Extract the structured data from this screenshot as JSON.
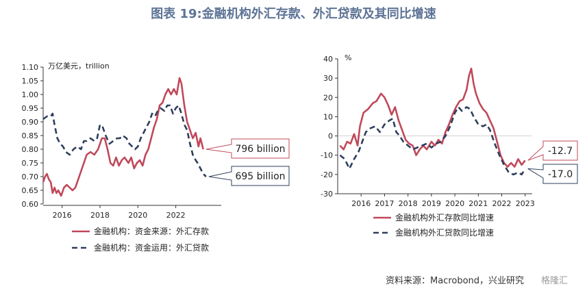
{
  "title": "图表 19:金融机构外汇存款、外汇贷款及其同比增速",
  "source": "资料来源：Macrobond，兴业研究",
  "watermark": "格隆汇",
  "colors": {
    "deposit": "#c0485a",
    "loan": "#2d3e5c",
    "axis": "#333333",
    "title": "#5d7395"
  },
  "chart_data": [
    {
      "type": "line",
      "unit_label": "万亿美元，trillion",
      "x_ticks": [
        "2016",
        "2018",
        "2020",
        "2022"
      ],
      "xlim": [
        2015.0,
        2024.4
      ],
      "ylim": [
        0.6,
        1.1
      ],
      "y_ticks": [
        "1.10",
        "1.05",
        "1.00",
        "0.95",
        "0.90",
        "0.85",
        "0.80",
        "0.75",
        "0.70",
        "0.65",
        "0.60"
      ],
      "grid": false,
      "legend_position": "bottom",
      "series": [
        {
          "name": "金融机构：资金来源：外汇存款",
          "key": "deposit",
          "style": "solid",
          "points": [
            [
              2015.0,
              0.68
            ],
            [
              2015.1,
              0.7
            ],
            [
              2015.2,
              0.71
            ],
            [
              2015.3,
              0.69
            ],
            [
              2015.4,
              0.68
            ],
            [
              2015.5,
              0.64
            ],
            [
              2015.6,
              0.66
            ],
            [
              2015.7,
              0.64
            ],
            [
              2015.8,
              0.65
            ],
            [
              2015.95,
              0.63
            ],
            [
              2016.1,
              0.66
            ],
            [
              2016.25,
              0.67
            ],
            [
              2016.4,
              0.66
            ],
            [
              2016.55,
              0.65
            ],
            [
              2016.7,
              0.66
            ],
            [
              2016.9,
              0.7
            ],
            [
              2017.1,
              0.74
            ],
            [
              2017.3,
              0.78
            ],
            [
              2017.5,
              0.79
            ],
            [
              2017.7,
              0.78
            ],
            [
              2017.9,
              0.8
            ],
            [
              2018.1,
              0.84
            ],
            [
              2018.25,
              0.84
            ],
            [
              2018.4,
              0.8
            ],
            [
              2018.55,
              0.75
            ],
            [
              2018.7,
              0.74
            ],
            [
              2018.85,
              0.77
            ],
            [
              2019.0,
              0.74
            ],
            [
              2019.15,
              0.76
            ],
            [
              2019.3,
              0.77
            ],
            [
              2019.5,
              0.75
            ],
            [
              2019.65,
              0.77
            ],
            [
              2019.8,
              0.73
            ],
            [
              2019.95,
              0.75
            ],
            [
              2020.1,
              0.76
            ],
            [
              2020.25,
              0.74
            ],
            [
              2020.4,
              0.78
            ],
            [
              2020.55,
              0.8
            ],
            [
              2020.7,
              0.84
            ],
            [
              2020.85,
              0.88
            ],
            [
              2021.0,
              0.91
            ],
            [
              2021.15,
              0.96
            ],
            [
              2021.3,
              0.97
            ],
            [
              2021.45,
              1.0
            ],
            [
              2021.6,
              1.02
            ],
            [
              2021.75,
              1.0
            ],
            [
              2021.9,
              1.02
            ],
            [
              2022.05,
              1.0
            ],
            [
              2022.2,
              1.06
            ],
            [
              2022.3,
              1.04
            ],
            [
              2022.45,
              0.96
            ],
            [
              2022.6,
              0.9
            ],
            [
              2022.75,
              0.87
            ],
            [
              2022.9,
              0.84
            ],
            [
              2023.05,
              0.86
            ],
            [
              2023.2,
              0.81
            ],
            [
              2023.3,
              0.84
            ],
            [
              2023.45,
              0.8
            ]
          ],
          "end_label": "796 billion"
        },
        {
          "name": "金融机构：资金运用：外汇贷款",
          "key": "loan",
          "style": "dashed",
          "points": [
            [
              2015.0,
              0.91
            ],
            [
              2015.2,
              0.92
            ],
            [
              2015.4,
              0.92
            ],
            [
              2015.5,
              0.93
            ],
            [
              2015.6,
              0.89
            ],
            [
              2015.75,
              0.84
            ],
            [
              2015.9,
              0.82
            ],
            [
              2016.05,
              0.81
            ],
            [
              2016.2,
              0.79
            ],
            [
              2016.4,
              0.78
            ],
            [
              2016.6,
              0.8
            ],
            [
              2016.8,
              0.81
            ],
            [
              2017.0,
              0.8
            ],
            [
              2017.15,
              0.83
            ],
            [
              2017.3,
              0.83
            ],
            [
              2017.5,
              0.84
            ],
            [
              2017.7,
              0.83
            ],
            [
              2017.85,
              0.84
            ],
            [
              2018.0,
              0.89
            ],
            [
              2018.15,
              0.88
            ],
            [
              2018.3,
              0.85
            ],
            [
              2018.5,
              0.82
            ],
            [
              2018.7,
              0.83
            ],
            [
              2018.9,
              0.84
            ],
            [
              2019.05,
              0.84
            ],
            [
              2019.2,
              0.85
            ],
            [
              2019.4,
              0.84
            ],
            [
              2019.55,
              0.82
            ],
            [
              2019.7,
              0.81
            ],
            [
              2019.85,
              0.8
            ],
            [
              2020.0,
              0.81
            ],
            [
              2020.15,
              0.84
            ],
            [
              2020.3,
              0.86
            ],
            [
              2020.45,
              0.88
            ],
            [
              2020.6,
              0.9
            ],
            [
              2020.75,
              0.93
            ],
            [
              2020.9,
              0.92
            ],
            [
              2021.05,
              0.94
            ],
            [
              2021.2,
              0.95
            ],
            [
              2021.4,
              0.94
            ],
            [
              2021.55,
              0.96
            ],
            [
              2021.7,
              0.96
            ],
            [
              2021.85,
              0.93
            ],
            [
              2022.0,
              0.95
            ],
            [
              2022.15,
              0.96
            ],
            [
              2022.3,
              0.93
            ],
            [
              2022.45,
              0.89
            ],
            [
              2022.6,
              0.87
            ],
            [
              2022.75,
              0.82
            ],
            [
              2022.9,
              0.78
            ],
            [
              2023.05,
              0.76
            ],
            [
              2023.15,
              0.75
            ],
            [
              2023.3,
              0.73
            ],
            [
              2023.45,
              0.71
            ],
            [
              2023.6,
              0.7
            ]
          ],
          "end_label": "695 billion"
        }
      ]
    },
    {
      "type": "line",
      "unit_label": "%",
      "x_ticks": [
        "2016",
        "2017",
        "2018",
        "2019",
        "2020",
        "2021",
        "2022",
        "2023"
      ],
      "xlim": [
        2015.5,
        2023.8
      ],
      "ylim": [
        -30,
        40
      ],
      "y_ticks": [
        "40",
        "30",
        "20",
        "10",
        "0",
        "-10",
        "-20",
        "-30"
      ],
      "grid": false,
      "legend_position": "bottom",
      "series": [
        {
          "name": "金融机构外汇存款同比增速",
          "key": "deposit",
          "style": "solid",
          "points": [
            [
              2015.6,
              -5
            ],
            [
              2015.75,
              -7
            ],
            [
              2015.9,
              -3
            ],
            [
              2016.05,
              -4
            ],
            [
              2016.2,
              1
            ],
            [
              2016.35,
              -5
            ],
            [
              2016.45,
              5
            ],
            [
              2016.6,
              12
            ],
            [
              2016.8,
              14
            ],
            [
              2017.0,
              17
            ],
            [
              2017.15,
              18
            ],
            [
              2017.35,
              22
            ],
            [
              2017.5,
              20
            ],
            [
              2017.65,
              16
            ],
            [
              2017.8,
              11
            ],
            [
              2017.95,
              15
            ],
            [
              2018.1,
              8
            ],
            [
              2018.25,
              3
            ],
            [
              2018.4,
              -2
            ],
            [
              2018.55,
              -4
            ],
            [
              2018.7,
              -5
            ],
            [
              2018.85,
              -10
            ],
            [
              2019.0,
              -7
            ],
            [
              2019.15,
              -5
            ],
            [
              2019.3,
              -7
            ],
            [
              2019.5,
              -3
            ],
            [
              2019.65,
              -5
            ],
            [
              2019.8,
              -2
            ],
            [
              2019.95,
              -4
            ],
            [
              2020.1,
              2
            ],
            [
              2020.25,
              6
            ],
            [
              2020.4,
              11
            ],
            [
              2020.55,
              15
            ],
            [
              2020.7,
              18
            ],
            [
              2020.85,
              19
            ],
            [
              2021.0,
              24
            ],
            [
              2021.1,
              31
            ],
            [
              2021.2,
              35
            ],
            [
              2021.3,
              27
            ],
            [
              2021.4,
              22
            ],
            [
              2021.55,
              17
            ],
            [
              2021.7,
              14
            ],
            [
              2021.85,
              12
            ],
            [
              2022.0,
              8
            ],
            [
              2022.15,
              4
            ],
            [
              2022.3,
              -3
            ],
            [
              2022.45,
              -10
            ],
            [
              2022.6,
              -14
            ],
            [
              2022.75,
              -16
            ],
            [
              2022.9,
              -14
            ],
            [
              2023.05,
              -16
            ],
            [
              2023.2,
              -12
            ],
            [
              2023.35,
              -15
            ],
            [
              2023.5,
              -12.7
            ]
          ],
          "end_label": "-12.7"
        },
        {
          "name": "金融机构外汇贷款同比增速",
          "key": "loan",
          "style": "dashed",
          "points": [
            [
              2015.6,
              -10
            ],
            [
              2015.8,
              -12
            ],
            [
              2016.0,
              -17
            ],
            [
              2016.2,
              -12
            ],
            [
              2016.4,
              -8
            ],
            [
              2016.55,
              -3
            ],
            [
              2016.7,
              2
            ],
            [
              2016.9,
              4
            ],
            [
              2017.1,
              5
            ],
            [
              2017.3,
              2
            ],
            [
              2017.5,
              6
            ],
            [
              2017.7,
              8
            ],
            [
              2017.85,
              9
            ],
            [
              2018.0,
              2
            ],
            [
              2018.15,
              0
            ],
            [
              2018.3,
              -3
            ],
            [
              2018.5,
              -5
            ],
            [
              2018.7,
              -7
            ],
            [
              2018.9,
              -6
            ],
            [
              2019.1,
              -5
            ],
            [
              2019.3,
              -4
            ],
            [
              2019.5,
              -6
            ],
            [
              2019.7,
              -4
            ],
            [
              2019.9,
              -3
            ],
            [
              2020.1,
              0
            ],
            [
              2020.3,
              5
            ],
            [
              2020.5,
              12
            ],
            [
              2020.65,
              15
            ],
            [
              2020.8,
              13
            ],
            [
              2021.0,
              15
            ],
            [
              2021.15,
              14
            ],
            [
              2021.3,
              10
            ],
            [
              2021.5,
              6
            ],
            [
              2021.7,
              5
            ],
            [
              2021.85,
              6
            ],
            [
              2022.0,
              3
            ],
            [
              2022.2,
              -4
            ],
            [
              2022.4,
              -10
            ],
            [
              2022.6,
              -15
            ],
            [
              2022.8,
              -19
            ],
            [
              2023.0,
              -20
            ],
            [
              2023.2,
              -19
            ],
            [
              2023.35,
              -20
            ],
            [
              2023.5,
              -17.0
            ]
          ],
          "end_label": "-17.0"
        }
      ]
    }
  ]
}
